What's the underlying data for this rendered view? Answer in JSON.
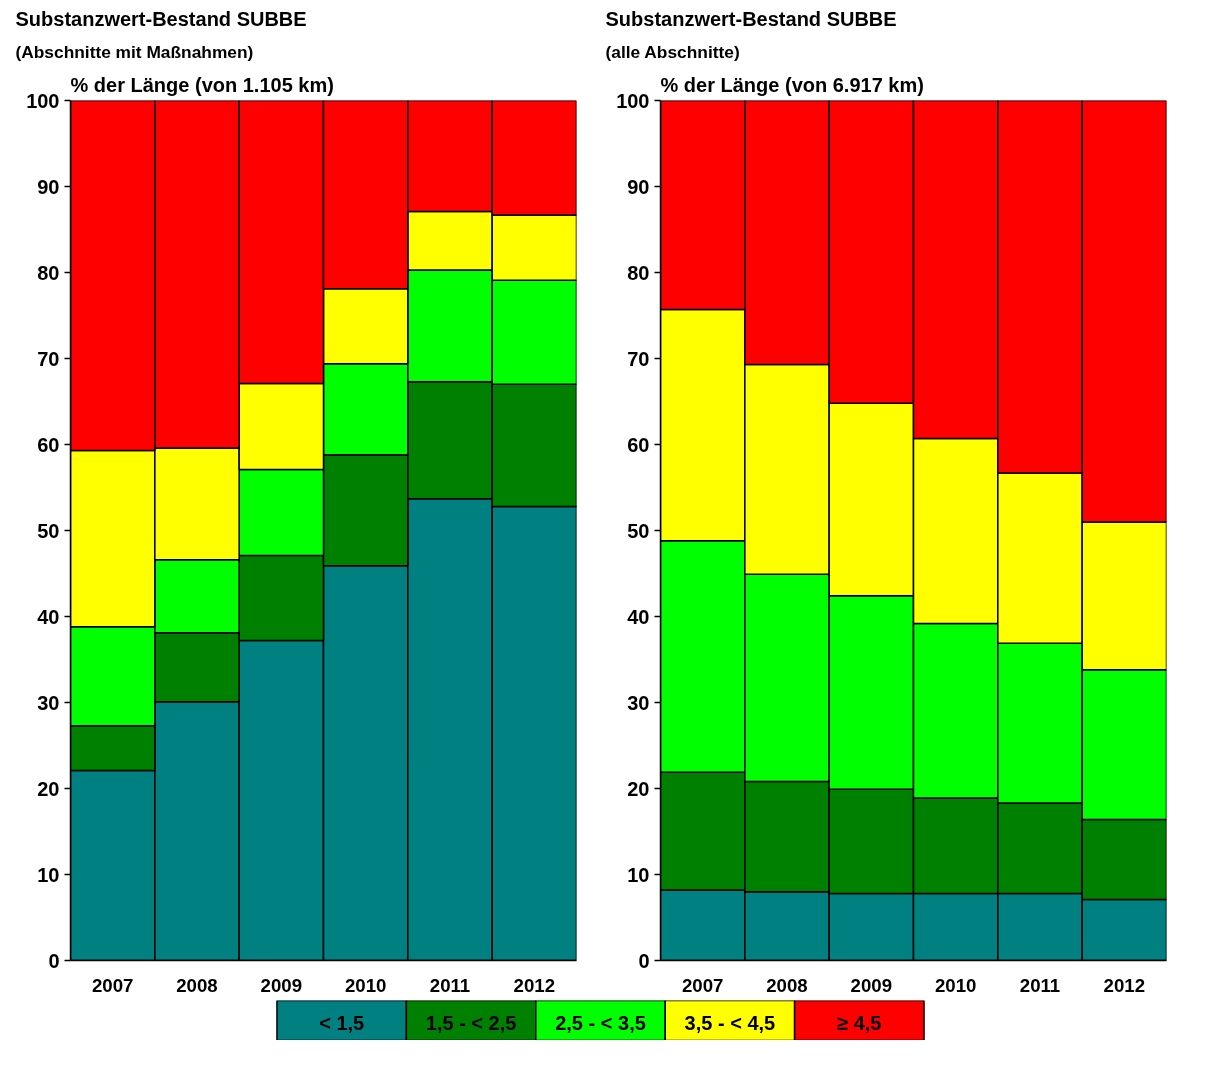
{
  "chart_data": [
    {
      "type": "bar",
      "stacked": true,
      "title": "Substanzwert-Bestand SUBBE",
      "subtitle": "(Abschnitte mit Maßnahmen)",
      "ylabel": "% der Länge (von 1.105 km)",
      "categories": [
        "2007",
        "2008",
        "2009",
        "2010",
        "2011",
        "2012"
      ],
      "ylim": [
        0,
        100
      ],
      "yticks": [
        0,
        10,
        20,
        30,
        40,
        50,
        60,
        70,
        80,
        90,
        100
      ],
      "legend": "bottom",
      "series": [
        {
          "name": "< 1,5",
          "color": "#008080",
          "values": [
            22.1,
            30.1,
            37.2,
            45.9,
            53.7,
            52.8
          ]
        },
        {
          "name": "1,5 - < 2,5",
          "color": "#008000",
          "values": [
            5.2,
            8.0,
            9.9,
            12.9,
            13.6,
            14.2
          ]
        },
        {
          "name": "2,5 - < 3,5",
          "color": "#00ff00",
          "values": [
            11.5,
            8.5,
            10.0,
            10.6,
            13.0,
            12.1
          ]
        },
        {
          "name": "3,5 - < 4,5",
          "color": "#ffff00",
          "values": [
            20.5,
            13.0,
            10.0,
            8.7,
            6.8,
            7.6
          ]
        },
        {
          "name": "≥ 4,5",
          "color": "#ff0000",
          "values": [
            40.7,
            40.4,
            32.9,
            21.9,
            12.9,
            13.3
          ]
        }
      ]
    },
    {
      "type": "bar",
      "stacked": true,
      "title": "Substanzwert-Bestand SUBBE",
      "subtitle": "(alle Abschnitte)",
      "ylabel": "% der Länge (von 6.917 km)",
      "categories": [
        "2007",
        "2008",
        "2009",
        "2010",
        "2011",
        "2012"
      ],
      "ylim": [
        0,
        100
      ],
      "yticks": [
        0,
        10,
        20,
        30,
        40,
        50,
        60,
        70,
        80,
        90,
        100
      ],
      "series": [
        {
          "color": "#008080",
          "values": [
            8.2,
            8.0,
            7.8,
            7.8,
            7.8,
            7.1
          ]
        },
        {
          "color": "#008000",
          "values": [
            13.7,
            12.8,
            12.1,
            11.1,
            10.5,
            9.3
          ]
        },
        {
          "color": "#00ff00",
          "values": [
            26.9,
            24.1,
            22.5,
            20.3,
            18.6,
            17.4
          ]
        },
        {
          "color": "#ffff00",
          "values": [
            26.9,
            24.4,
            22.4,
            21.5,
            19.8,
            17.2
          ]
        },
        {
          "color": "#ff0000",
          "values": [
            24.3,
            30.7,
            35.2,
            39.3,
            43.3,
            49.0
          ]
        }
      ]
    }
  ]
}
